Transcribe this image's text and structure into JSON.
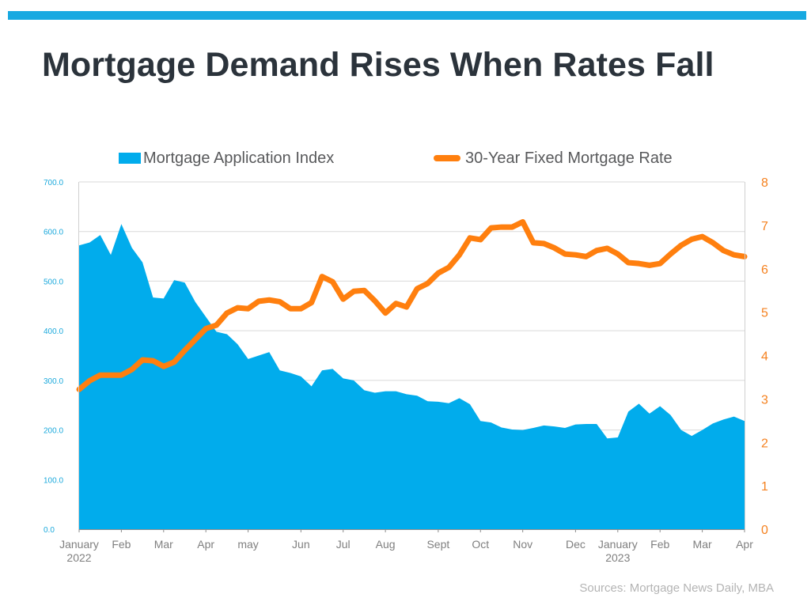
{
  "header": {
    "title": "Mortgage Demand Rises When Rates Fall"
  },
  "footer": {
    "source": "Sources: Mortgage News Daily, MBA"
  },
  "colors": {
    "accent_bar": "#17a9e1",
    "area": "#01acec",
    "line": "#ff7f0e",
    "left_axis": "#1ba9dc",
    "right_axis": "#f58220"
  },
  "chart_data": {
    "type": "area",
    "x_ticks": [
      {
        "label": "January",
        "year": "2022",
        "pos": 0
      },
      {
        "label": "Feb",
        "year": "",
        "pos": 4
      },
      {
        "label": "Mar",
        "year": "",
        "pos": 8
      },
      {
        "label": "Apr",
        "year": "",
        "pos": 12
      },
      {
        "label": "may",
        "year": "",
        "pos": 16
      },
      {
        "label": "Jun",
        "year": "",
        "pos": 21
      },
      {
        "label": "Jul",
        "year": "",
        "pos": 25
      },
      {
        "label": "Aug",
        "year": "",
        "pos": 29
      },
      {
        "label": "Sept",
        "year": "",
        "pos": 34
      },
      {
        "label": "Oct",
        "year": "",
        "pos": 38
      },
      {
        "label": "Nov",
        "year": "",
        "pos": 42
      },
      {
        "label": "Dec",
        "year": "",
        "pos": 47
      },
      {
        "label": "January",
        "year": "2023",
        "pos": 51
      },
      {
        "label": "Feb",
        "year": "",
        "pos": 55
      },
      {
        "label": "Mar",
        "year": "",
        "pos": 59
      },
      {
        "label": "Apr",
        "year": "",
        "pos": 63
      }
    ],
    "y_left": {
      "min": 0,
      "max": 700,
      "ticks": [
        "0.0",
        "100.0",
        "200.0",
        "300.0",
        "400.0",
        "500.0",
        "600.0",
        "700.0"
      ]
    },
    "y_right": {
      "min": 0,
      "max": 8,
      "ticks": [
        "0",
        "1",
        "2",
        "3",
        "4",
        "5",
        "6",
        "7",
        "8"
      ]
    },
    "grid": true,
    "legend_position": "top",
    "series": [
      {
        "name": "Mortgage Application Index",
        "type": "area",
        "axis": "left",
        "values": [
          572,
          578,
          593,
          553,
          615,
          567,
          538,
          467,
          465,
          502,
          497,
          458,
          428,
          398,
          393,
          373,
          343,
          350,
          357,
          320,
          315,
          308,
          288,
          320,
          323,
          304,
          300,
          280,
          275,
          278,
          278,
          272,
          269,
          258,
          257,
          254,
          264,
          252,
          218,
          215,
          205,
          201,
          200,
          204,
          209,
          207,
          204,
          211,
          212,
          212,
          183,
          185,
          237,
          253,
          233,
          248,
          230,
          200,
          188,
          200,
          213,
          221,
          227,
          218
        ]
      },
      {
        "name": "30-Year Fixed Mortgage Rate",
        "type": "line",
        "axis": "right",
        "values": [
          3.22,
          3.42,
          3.55,
          3.55,
          3.55,
          3.68,
          3.9,
          3.88,
          3.75,
          3.85,
          4.12,
          4.37,
          4.62,
          4.7,
          4.98,
          5.1,
          5.08,
          5.25,
          5.28,
          5.24,
          5.08,
          5.08,
          5.22,
          5.82,
          5.7,
          5.3,
          5.48,
          5.5,
          5.26,
          4.98,
          5.2,
          5.12,
          5.54,
          5.66,
          5.9,
          6.03,
          6.32,
          6.71,
          6.67,
          6.94,
          6.96,
          6.96,
          7.08,
          6.6,
          6.58,
          6.48,
          6.34,
          6.32,
          6.28,
          6.42,
          6.47,
          6.34,
          6.14,
          6.12,
          6.08,
          6.12,
          6.34,
          6.54,
          6.68,
          6.74,
          6.6,
          6.42,
          6.32,
          6.28
        ]
      }
    ]
  }
}
